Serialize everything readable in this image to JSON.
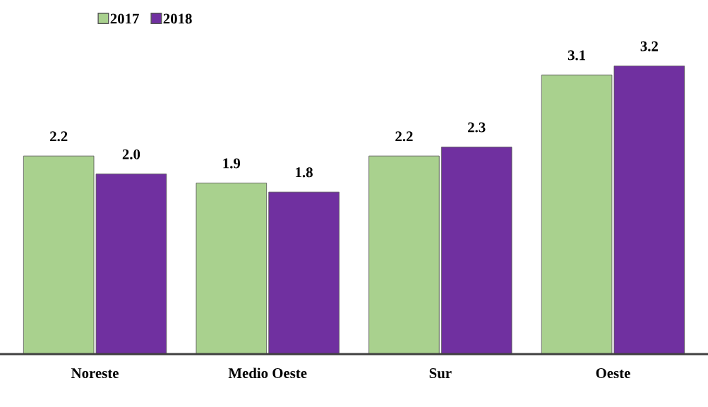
{
  "chart_data": {
    "type": "bar",
    "categories": [
      "Noreste",
      "Medio Oeste",
      "Sur",
      "Oeste"
    ],
    "series": [
      {
        "name": "2017",
        "color": "#a9d18e",
        "values": [
          2.2,
          1.9,
          2.2,
          3.1
        ],
        "value_labels": [
          "2.2",
          "1.9",
          "2.2",
          "3.1"
        ]
      },
      {
        "name": "2018",
        "color": "#7030a0",
        "values": [
          2.0,
          1.8,
          2.3,
          3.2
        ],
        "value_labels": [
          "2.0",
          "1.8",
          "2.3",
          "3.2"
        ]
      }
    ],
    "legend": "top left",
    "grid": false
  }
}
